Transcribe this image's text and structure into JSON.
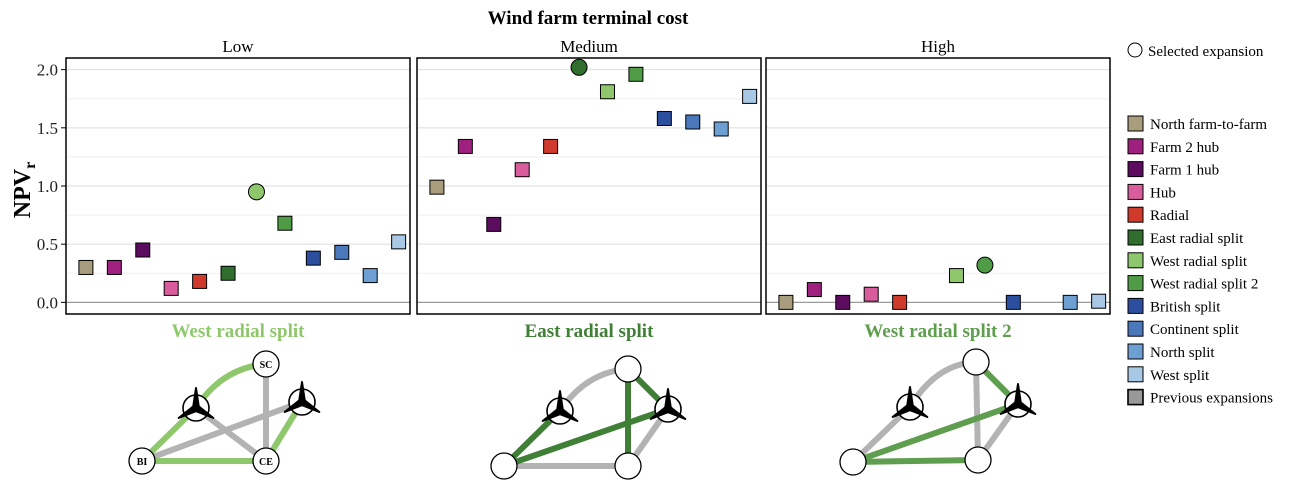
{
  "chart_data": {
    "type": "scatter",
    "title": "Wind farm terminal cost",
    "ylabel_main": "NPV",
    "ylabel_sub": "r",
    "ylim": [
      -0.1,
      2.1
    ],
    "yticks": [
      0.0,
      0.5,
      1.0,
      1.5,
      2.0
    ],
    "ytick_labels": [
      "0.0",
      "0.5",
      "1.0",
      "1.5",
      "2.0"
    ],
    "grid": true,
    "legend_position": "right",
    "selected_label": "Selected expansion",
    "previous_label": "Previous expansions",
    "categories": [
      "North farm-to-farm",
      "Farm 2 hub",
      "Farm 1 hub",
      "Hub",
      "Radial",
      "East radial split",
      "West radial split",
      "West radial split 2",
      "British split",
      "Continent split",
      "North split",
      "West split"
    ],
    "series_colors": [
      "#a89e7e",
      "#a0207f",
      "#5c0c5e",
      "#d95d9c",
      "#cf3a2c",
      "#2f6e2d",
      "#8fc76c",
      "#4f9b46",
      "#2b4f9e",
      "#4a78bb",
      "#6e9fd3",
      "#a9c8e6"
    ],
    "previous_color": "#999999",
    "panels": [
      {
        "name": "Low",
        "values": [
          0.3,
          0.3,
          0.45,
          0.12,
          0.18,
          0.25,
          0.95,
          0.68,
          0.38,
          0.43,
          0.23,
          0.52
        ],
        "selected_index": 6,
        "selected_label": "West radial split",
        "selected_color": "#8fc76c"
      },
      {
        "name": "Medium",
        "values": [
          0.99,
          1.34,
          0.67,
          1.14,
          1.34,
          2.02,
          1.81,
          1.96,
          1.58,
          1.55,
          1.49,
          1.77
        ],
        "selected_index": 5,
        "selected_label": "East radial split",
        "selected_color": "#3f7f36"
      },
      {
        "name": "High",
        "values": [
          0.0,
          0.11,
          0.0,
          0.07,
          0.0,
          null,
          0.23,
          0.32,
          0.0,
          null,
          0.0,
          0.01
        ],
        "selected_index": 7,
        "selected_label": "West radial split 2",
        "selected_color": "#5e9e4e"
      }
    ]
  },
  "network": {
    "node_labels": {
      "SC": "SC",
      "BI": "BI",
      "CE": "CE"
    },
    "edge_color_gray": "#b3b3b3"
  }
}
